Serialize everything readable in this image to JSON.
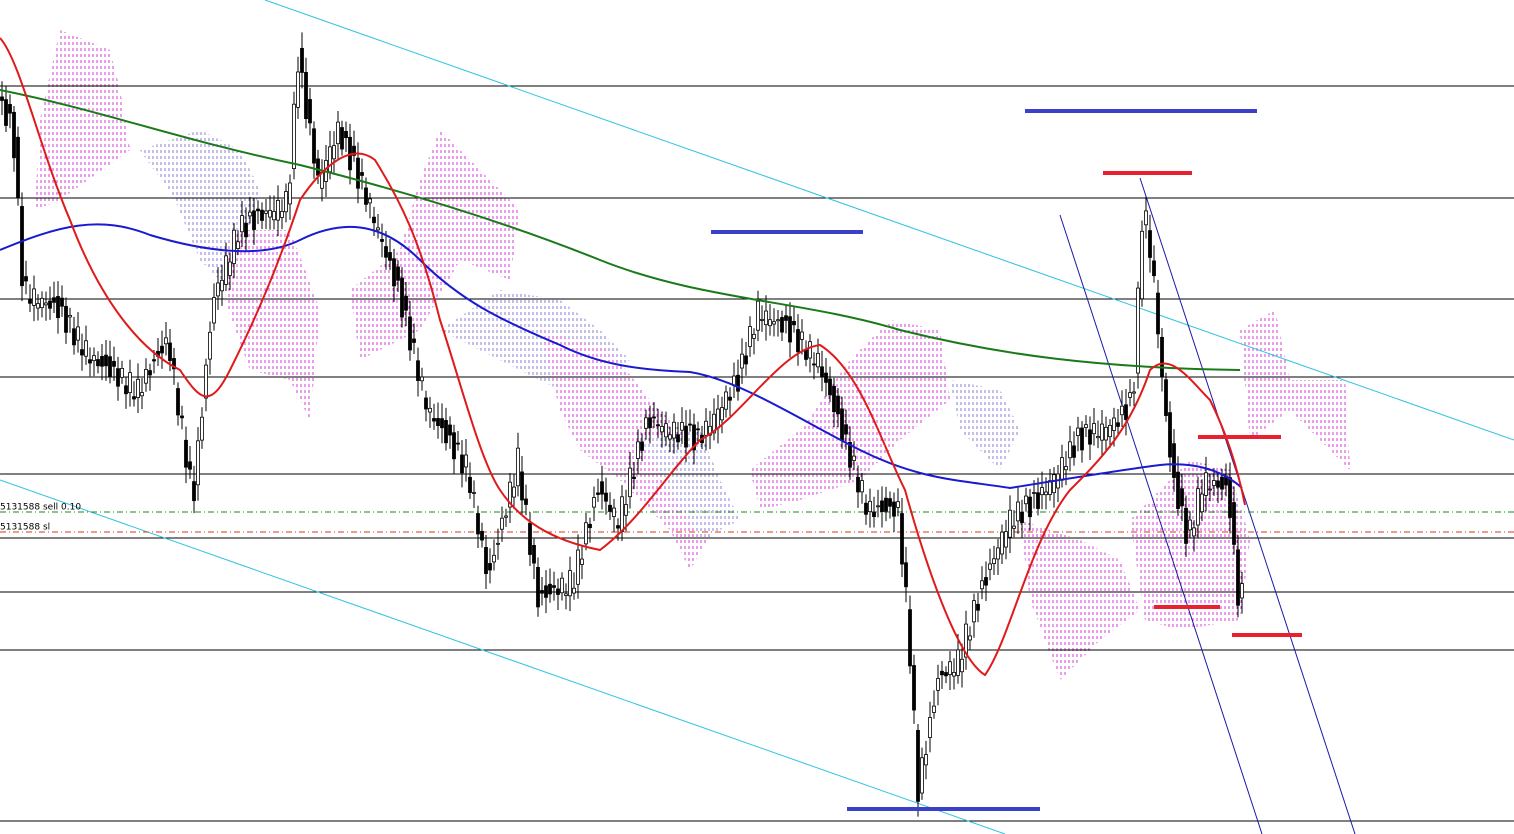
{
  "orders": [
    {
      "label": "5131588 sell 0.10"
    },
    {
      "label": "5131588 sl"
    }
  ]
}
